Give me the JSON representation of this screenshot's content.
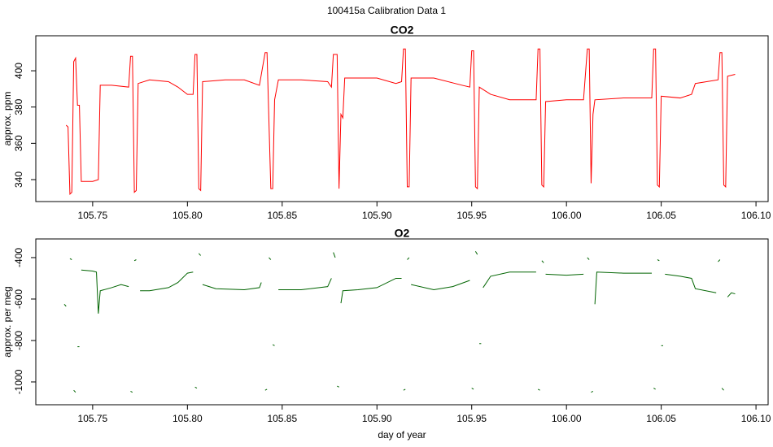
{
  "title": "100415a   Calibration Data 1",
  "chart_data": [
    {
      "type": "line",
      "title": "CO2",
      "y_label": "approx. ppm",
      "x": [
        105.736,
        105.737,
        105.738,
        105.739,
        105.74,
        105.741,
        105.742,
        105.743,
        105.744,
        105.75,
        105.753,
        105.754,
        105.76,
        105.769,
        105.77,
        105.771,
        105.772,
        105.773,
        105.774,
        105.78,
        105.79,
        105.795,
        105.8,
        105.803,
        105.804,
        105.805,
        105.806,
        105.807,
        105.808,
        105.82,
        105.83,
        105.838,
        105.841,
        105.842,
        105.844,
        105.845,
        105.846,
        105.848,
        105.86,
        105.874,
        105.876,
        105.877,
        105.879,
        105.88,
        105.881,
        105.882,
        105.883,
        105.9,
        105.91,
        105.913,
        105.914,
        105.915,
        105.916,
        105.917,
        105.918,
        105.93,
        105.945,
        105.949,
        105.95,
        105.951,
        105.952,
        105.953,
        105.954,
        105.96,
        105.97,
        105.984,
        105.985,
        105.986,
        105.987,
        105.988,
        105.989,
        106.0,
        106.009,
        106.011,
        106.012,
        106.013,
        106.014,
        106.015,
        106.03,
        106.045,
        106.046,
        106.047,
        106.048,
        106.049,
        106.05,
        106.06,
        106.066,
        106.068,
        106.08,
        106.081,
        106.082,
        106.083,
        106.084,
        106.085,
        106.089
      ],
      "series": [
        {
          "name": "CO2",
          "color": "#ff0000",
          "values": [
            370,
            369,
            332,
            333,
            405,
            407,
            381,
            381,
            339,
            339,
            340,
            392,
            392,
            391,
            408,
            408,
            333,
            334,
            393,
            395,
            394,
            391,
            387,
            387,
            409,
            409,
            335,
            334,
            394,
            395,
            395,
            392,
            410,
            410,
            335,
            335,
            384,
            395,
            395,
            394,
            391,
            409,
            409,
            335,
            376,
            374,
            396,
            396,
            393,
            394,
            412,
            412,
            336,
            336,
            396,
            396,
            392,
            391,
            411,
            411,
            336,
            335,
            391,
            387,
            384,
            384,
            412,
            412,
            337,
            336,
            383,
            384,
            384,
            412,
            412,
            338,
            376,
            384,
            385,
            385,
            412,
            412,
            337,
            336,
            386,
            385,
            387,
            393,
            395,
            410,
            410,
            337,
            336,
            397,
            398
          ]
        }
      ],
      "xlim": [
        105.72,
        106.1064
      ],
      "ylim": [
        327.9,
        419.3
      ],
      "xticks": [
        105.75,
        {
          "value": 105.8,
          "label": "105.80"
        },
        105.85,
        {
          "value": 105.9,
          "label": "105.90"
        },
        105.95,
        {
          "value": 106,
          "label": "106.00"
        },
        106.05,
        {
          "value": 106.1,
          "label": "106.10"
        }
      ],
      "yticks": [
        340,
        360,
        380,
        400
      ]
    },
    {
      "type": "line",
      "title": "O2",
      "y_label": "approx. per meg",
      "x_label": "day of year",
      "x": [
        105.735,
        105.736,
        null,
        105.738,
        105.739,
        null,
        105.74,
        105.741,
        null,
        105.742,
        105.743,
        null,
        105.744,
        105.75,
        105.752,
        105.753,
        105.754,
        105.76,
        105.765,
        105.769,
        null,
        105.77,
        105.771,
        null,
        105.772,
        105.773,
        null,
        105.775,
        105.78,
        105.79,
        105.795,
        105.8,
        105.803,
        null,
        105.804,
        105.805,
        null,
        105.806,
        105.807,
        null,
        105.808,
        105.815,
        105.83,
        105.838,
        105.839,
        null,
        105.841,
        105.842,
        null,
        105.843,
        105.844,
        null,
        105.845,
        105.846,
        null,
        105.848,
        105.86,
        105.874,
        105.876,
        null,
        105.877,
        105.878,
        null,
        105.879,
        105.88,
        null,
        105.881,
        105.882,
        105.89,
        105.9,
        105.91,
        105.913,
        null,
        105.914,
        105.915,
        null,
        105.916,
        105.917,
        null,
        105.918,
        105.93,
        105.94,
        105.949,
        null,
        105.95,
        105.951,
        null,
        105.952,
        105.953,
        null,
        105.954,
        105.955,
        null,
        105.956,
        105.96,
        105.97,
        105.984,
        null,
        105.985,
        105.986,
        null,
        105.987,
        105.988,
        null,
        105.989,
        106.0,
        106.009,
        null,
        106.011,
        106.012,
        null,
        106.013,
        106.014,
        null,
        106.015,
        106.016,
        106.03,
        106.045,
        null,
        106.046,
        106.047,
        null,
        106.048,
        106.049,
        null,
        106.05,
        106.051,
        null,
        106.052,
        106.06,
        106.066,
        106.068,
        106.079,
        null,
        106.08,
        106.081,
        null,
        106.082,
        106.083,
        null,
        106.085,
        106.087,
        106.089
      ],
      "series": [
        {
          "name": "O2",
          "color": "#006400",
          "values": [
            -625,
            -635,
            null,
            -405,
            -410,
            null,
            -1040,
            -1050,
            null,
            -830,
            -830,
            null,
            -460,
            -465,
            -470,
            -670,
            -560,
            -545,
            -530,
            -540,
            null,
            -1045,
            -1050,
            null,
            -415,
            -410,
            null,
            -560,
            -560,
            -545,
            -520,
            -475,
            -470,
            null,
            -1025,
            -1030,
            null,
            -380,
            -390,
            null,
            -530,
            -550,
            -555,
            -545,
            -520,
            null,
            -1040,
            -1035,
            null,
            -400,
            -410,
            null,
            -820,
            -825,
            null,
            -555,
            -555,
            -540,
            -500,
            null,
            -375,
            -400,
            null,
            -1020,
            -1025,
            null,
            -620,
            -560,
            -555,
            -545,
            -500,
            -500,
            null,
            -1040,
            -1035,
            null,
            -410,
            -400,
            null,
            -530,
            -555,
            -540,
            -510,
            null,
            -1030,
            -1035,
            null,
            -370,
            -385,
            null,
            -815,
            -815,
            null,
            -545,
            -490,
            -470,
            -470,
            null,
            -1035,
            -1040,
            null,
            -415,
            -425,
            null,
            -480,
            -485,
            -480,
            null,
            -400,
            -410,
            null,
            -1050,
            -1045,
            null,
            -625,
            -470,
            -475,
            -475,
            null,
            -1030,
            -1035,
            null,
            -410,
            -415,
            null,
            -825,
            -825,
            null,
            -480,
            -490,
            -500,
            -550,
            -570,
            null,
            -420,
            -410,
            null,
            -1030,
            -1040,
            null,
            -590,
            -570,
            -575
          ]
        }
      ],
      "xlim": [
        105.72,
        106.1064
      ],
      "ylim": [
        -1110,
        -310
      ],
      "xticks": [
        105.75,
        {
          "value": 105.8,
          "label": "105.80"
        },
        105.85,
        {
          "value": 105.9,
          "label": "105.90"
        },
        105.95,
        {
          "value": 106,
          "label": "106.00"
        },
        106.05,
        {
          "value": 106.1,
          "label": "106.10"
        }
      ],
      "yticks": [
        -400,
        -600,
        -800,
        -1000
      ]
    }
  ]
}
